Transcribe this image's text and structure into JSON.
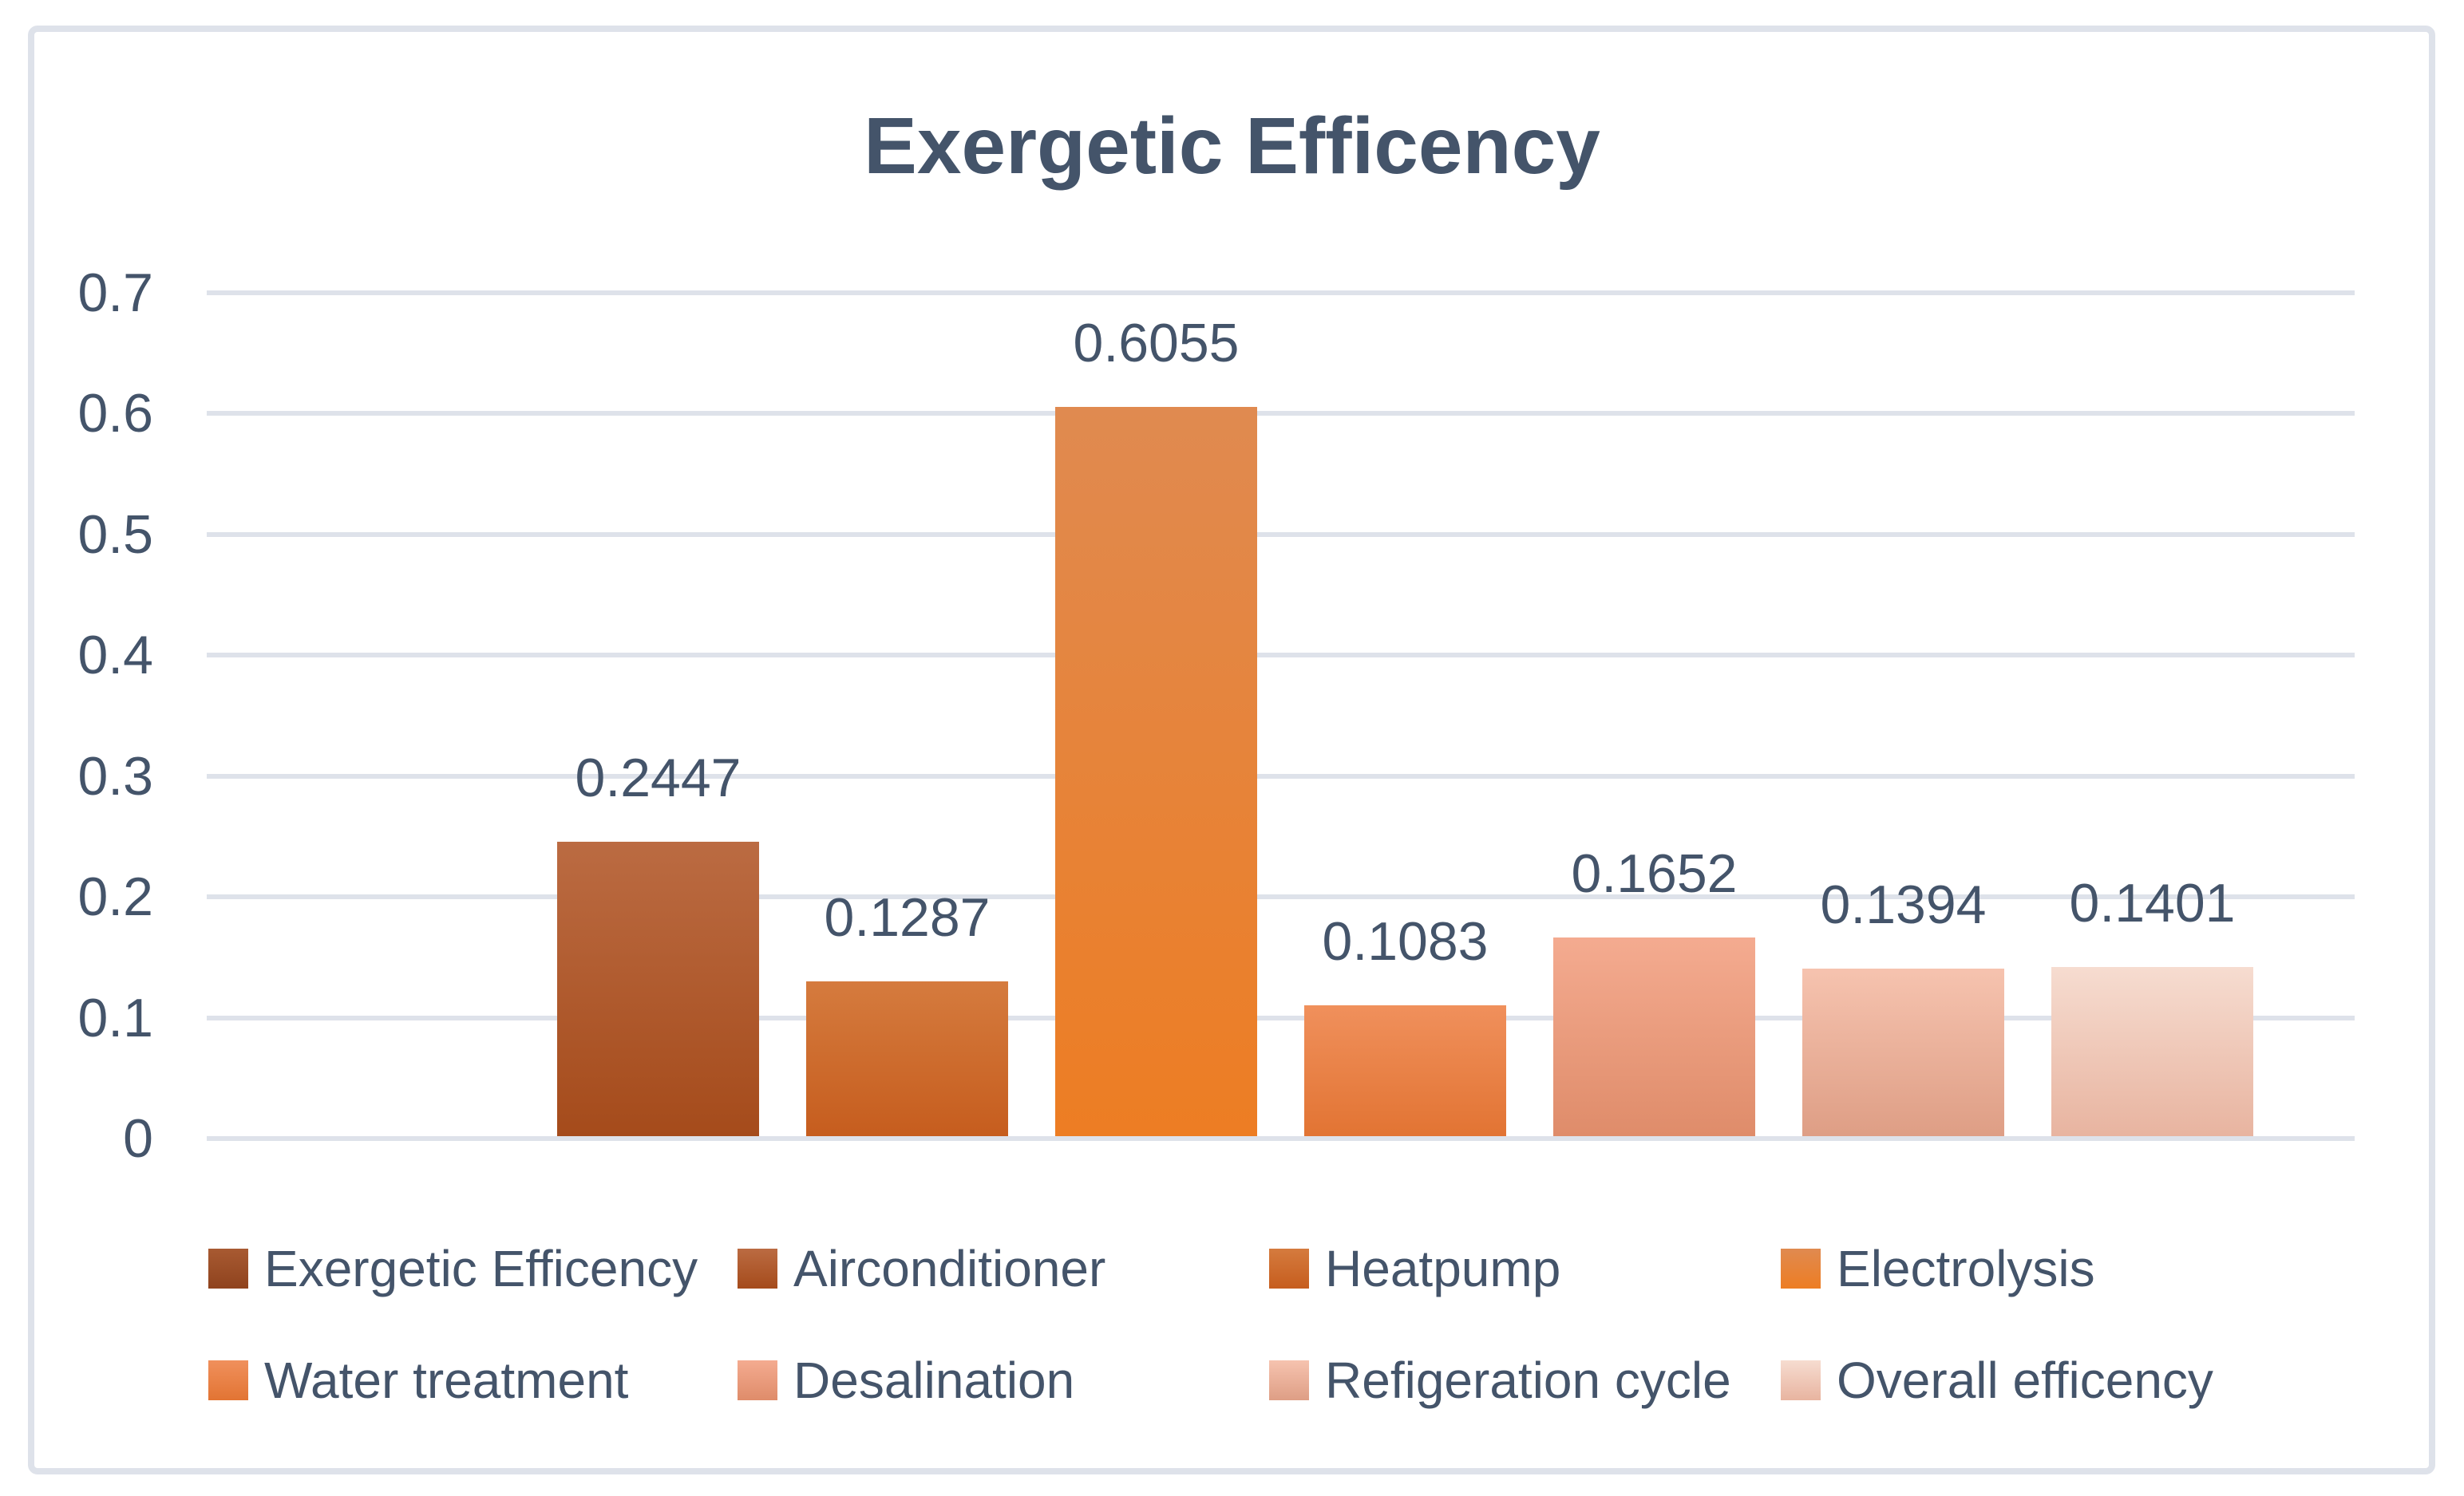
{
  "page": {
    "background": "#FFFFFF",
    "border_color": "#DEE2EA",
    "text_color": "#44546A",
    "gridline_color": "#DEE2EA"
  },
  "chart_data": {
    "type": "bar",
    "title": "Exergetic Efficency",
    "xlabel": "",
    "ylabel": "",
    "ylim": [
      0,
      0.7
    ],
    "ytick_labels": [
      "0.7",
      "0.6",
      "0.5",
      "0.4",
      "0.3",
      "0.2",
      "0.1",
      "0"
    ],
    "grid": true,
    "legend_position": "bottom",
    "categories": [
      "Exergetic Efficency",
      "Airconditioner",
      "Heatpump",
      "Electrolysis",
      "Water treatment",
      "Desalination",
      "Refigeration cycle",
      "Overall efficency"
    ],
    "values": [
      null,
      0.2447,
      0.1287,
      0.6055,
      0.1083,
      0.1652,
      0.1394,
      0.1401
    ],
    "data_labels": [
      "",
      "0.2447",
      "0.1287",
      "0.6055",
      "0.1083",
      "0.1652",
      "0.1394",
      "0.1401"
    ],
    "colors": [
      {
        "top": "#A85A32",
        "bottom": "#8F431E"
      },
      {
        "top": "#BB6B42",
        "bottom": "#A54B1B"
      },
      {
        "top": "#D57B3E",
        "bottom": "#C65D1E"
      },
      {
        "top": "#E08A50",
        "bottom": "#ED7D23"
      },
      {
        "top": "#F0905C",
        "bottom": "#E27433"
      },
      {
        "top": "#F4AB90",
        "bottom": "#DF8C6A"
      },
      {
        "top": "#F6C3AF",
        "bottom": "#DE9E85"
      },
      {
        "top": "#F6DCD0",
        "bottom": "#E8B4A0"
      }
    ]
  }
}
